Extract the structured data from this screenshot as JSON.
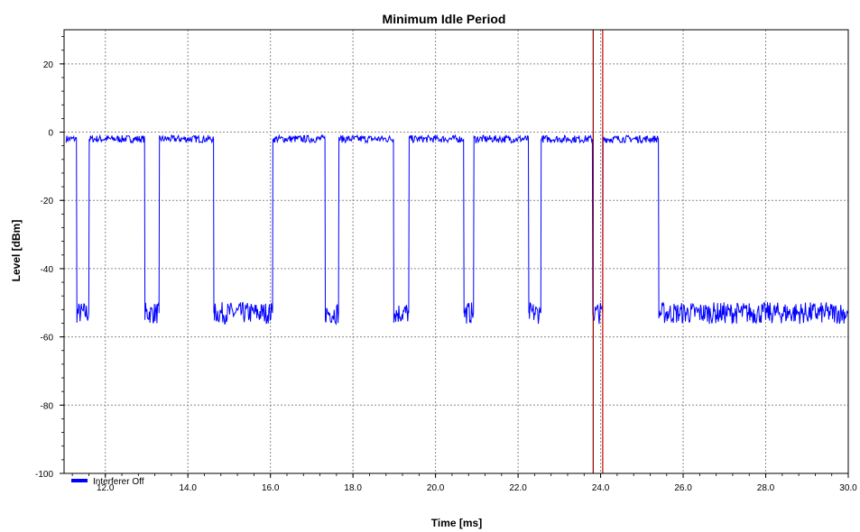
{
  "chart_data": {
    "type": "line",
    "title": "Minimum Idle Period",
    "xlabel": "Time [ms]",
    "ylabel": "Level [dBm]",
    "xlim": [
      11.0,
      30.0
    ],
    "ylim": [
      -100,
      30
    ],
    "x_ticks": [
      12.0,
      14.0,
      16.0,
      18.0,
      20.0,
      22.0,
      24.0,
      26.0,
      28.0,
      30.0
    ],
    "x_tick_labels": [
      "12.0",
      "14.0",
      "16.0",
      "18.0",
      "20.0",
      "22.0",
      "24.0",
      "26.0",
      "28.0",
      "30.0"
    ],
    "y_ticks": [
      20,
      0,
      -20,
      -40,
      -60,
      -80,
      -100
    ],
    "y_tick_labels": [
      "20",
      "0",
      "-20",
      "-40",
      "-60",
      "-80",
      "-100"
    ],
    "grid": true,
    "legend_position": "bottom-left",
    "series": [
      {
        "name": "Interferer Off",
        "color": "#0000ff",
        "high_level": -2,
        "low_level": -53,
        "x": [
          11.05,
          11.3,
          11.31,
          11.6,
          11.61,
          12.95,
          12.96,
          13.3,
          13.31,
          14.62,
          14.63,
          16.05,
          16.06,
          17.32,
          17.33,
          17.65,
          17.66,
          18.98,
          18.99,
          19.35,
          19.36,
          20.68,
          20.69,
          20.92,
          20.93,
          22.25,
          22.26,
          22.55,
          22.56,
          23.8,
          23.81,
          24.05,
          24.06,
          25.4,
          25.41,
          30.0
        ],
        "y": [
          -2,
          -2,
          -53,
          -53,
          -2,
          -2,
          -53,
          -53,
          -2,
          -2,
          -53,
          -53,
          -2,
          -2,
          -53,
          -53,
          -2,
          -2,
          -53,
          -53,
          -2,
          -2,
          -53,
          -53,
          -2,
          -2,
          -53,
          -53,
          -2,
          -2,
          -53,
          -53,
          -2,
          -2,
          -53,
          -53
        ]
      }
    ],
    "markers": [
      {
        "x": 23.82,
        "color": "#8b0000"
      },
      {
        "x": 24.05,
        "color": "#cc0000"
      }
    ]
  }
}
